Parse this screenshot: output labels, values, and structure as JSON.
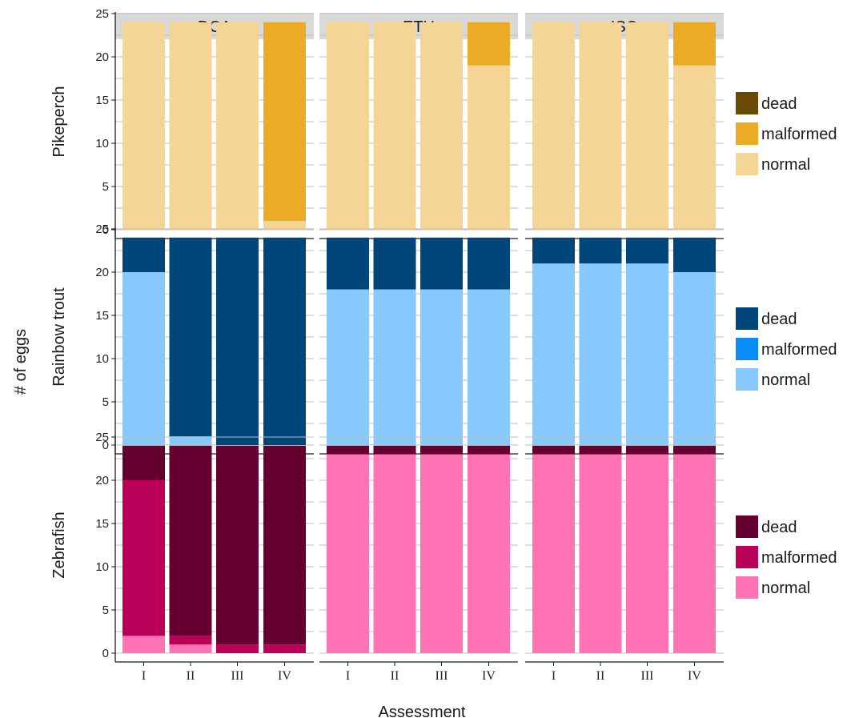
{
  "chart_data": {
    "type": "bar",
    "stacked": true,
    "xlabel": "Assessment",
    "ylabel": "# of eggs",
    "ylim": [
      0,
      25
    ],
    "yticks": [
      0,
      5,
      10,
      15,
      20,
      25
    ],
    "categories": [
      "I",
      "II",
      "III",
      "IV"
    ],
    "columns": [
      "DCA",
      "ETH",
      "ISO"
    ],
    "grid": true,
    "legend_position": "right",
    "stack_order": [
      "normal",
      "malformed",
      "dead"
    ],
    "rows": [
      {
        "name": "Pikeperch",
        "legend": [
          {
            "label": "dead",
            "color": "#6b4a07"
          },
          {
            "label": "malformed",
            "color": "#ecab27"
          },
          {
            "label": "normal",
            "color": "#f5d595"
          }
        ],
        "panels": [
          {
            "column": "DCA",
            "normal": [
              24,
              24,
              24,
              1
            ],
            "malformed": [
              0,
              0,
              0,
              23
            ],
            "dead": [
              0,
              0,
              0,
              0
            ]
          },
          {
            "column": "ETH",
            "normal": [
              24,
              24,
              24,
              19
            ],
            "malformed": [
              0,
              0,
              0,
              5
            ],
            "dead": [
              0,
              0,
              0,
              0
            ]
          },
          {
            "column": "ISO",
            "normal": [
              24,
              24,
              24,
              19
            ],
            "malformed": [
              0,
              0,
              0,
              5
            ],
            "dead": [
              0,
              0,
              0,
              0
            ]
          }
        ]
      },
      {
        "name": "Rainbow trout",
        "legend": [
          {
            "label": "dead",
            "color": "#00467a"
          },
          {
            "label": "malformed",
            "color": "#098df5"
          },
          {
            "label": "normal",
            "color": "#87c9fc"
          }
        ],
        "panels": [
          {
            "column": "DCA",
            "normal": [
              20,
              1,
              0,
              0
            ],
            "malformed": [
              0,
              0,
              0,
              0
            ],
            "dead": [
              4,
              23,
              24,
              24
            ]
          },
          {
            "column": "ETH",
            "normal": [
              18,
              18,
              18,
              18
            ],
            "malformed": [
              0,
              0,
              0,
              0
            ],
            "dead": [
              6,
              6,
              6,
              6
            ]
          },
          {
            "column": "ISO",
            "normal": [
              21,
              21,
              21,
              20
            ],
            "malformed": [
              0,
              0,
              0,
              0
            ],
            "dead": [
              3,
              3,
              3,
              4
            ]
          }
        ]
      },
      {
        "name": "Zebrafish",
        "legend": [
          {
            "label": "dead",
            "color": "#660030"
          },
          {
            "label": "malformed",
            "color": "#ba0057"
          },
          {
            "label": "normal",
            "color": "#ff73b5"
          }
        ],
        "panels": [
          {
            "column": "DCA",
            "normal": [
              2,
              1,
              0,
              0
            ],
            "malformed": [
              18,
              1,
              1,
              1
            ],
            "dead": [
              4,
              22,
              23,
              23
            ]
          },
          {
            "column": "ETH",
            "normal": [
              23,
              23,
              23,
              23
            ],
            "malformed": [
              0,
              0,
              0,
              0
            ],
            "dead": [
              1,
              1,
              1,
              1
            ]
          },
          {
            "column": "ISO",
            "normal": [
              23,
              23,
              23,
              23
            ],
            "malformed": [
              0,
              0,
              0,
              0
            ],
            "dead": [
              1,
              1,
              1,
              1
            ]
          }
        ]
      }
    ]
  }
}
